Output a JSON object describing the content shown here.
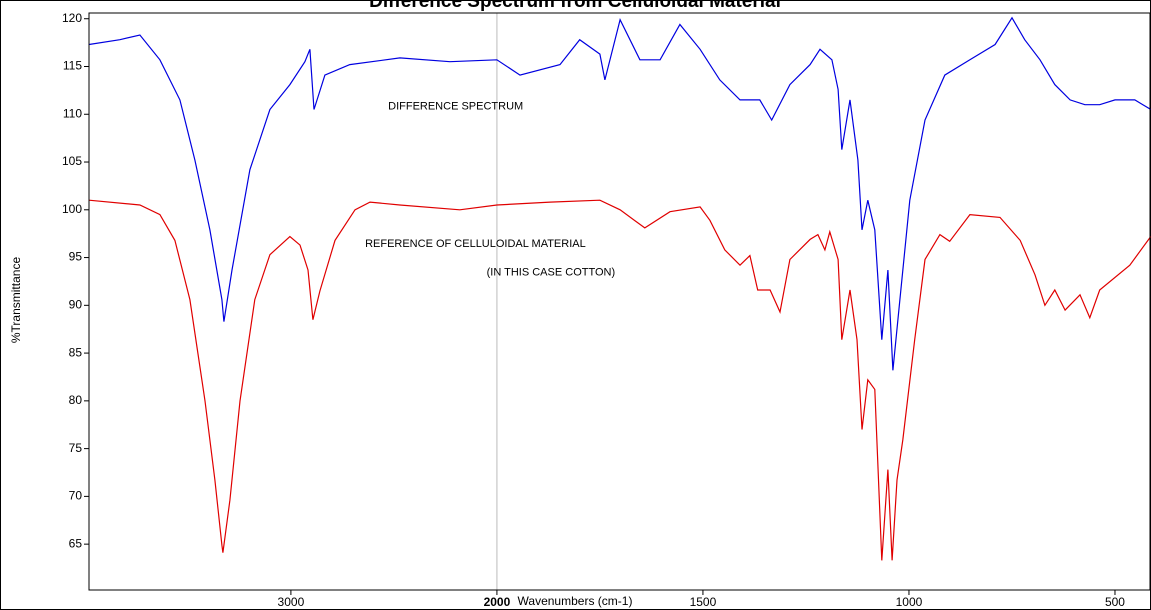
{
  "chart_data": {
    "type": "line",
    "title": "Difference Spectrum from Celluloidal Material",
    "xlabel": "Wavenumbers (cm-1)",
    "ylabel": "%Transmittance",
    "xlim": [
      3980,
      415
    ],
    "x_scale_break": 2000,
    "xticks": [
      3000,
      2000,
      1500,
      1000,
      500
    ],
    "ylim": [
      60.2,
      120.6
    ],
    "yticks": [
      65,
      70,
      75,
      80,
      85,
      90,
      95,
      100,
      105,
      110,
      115,
      120
    ],
    "annotations": [
      {
        "text": "DIFFERENCE SPECTRUM",
        "x": 2528,
        "y": 110.8
      },
      {
        "text": "REFERENCE OF CELLULOIDAL MATERIAL",
        "x": 2640,
        "y": 96.4
      },
      {
        "text": "(IN THIS CASE COTTON)",
        "x": 2050,
        "y": 93.4
      }
    ],
    "series": [
      {
        "name": "DIFFERENCE SPECTRUM",
        "color": "#0000e0",
        "x": [
          3980,
          3830,
          3733,
          3636,
          3539,
          3466,
          3393,
          3335,
          3325,
          3286,
          3199,
          3102,
          3005,
          2932,
          2908,
          2888,
          2835,
          2714,
          2471,
          2228,
          2000,
          1944,
          1847,
          1799,
          1750,
          1738,
          1701,
          1653,
          1604,
          1556,
          1507,
          1459,
          1410,
          1362,
          1333,
          1289,
          1240,
          1216,
          1187,
          1172,
          1163,
          1143,
          1124,
          1114,
          1100,
          1083,
          1066,
          1051,
          1039,
          1022,
          998,
          961,
          913,
          852,
          791,
          750,
          719,
          682,
          646,
          609,
          573,
          537,
          500,
          452,
          413
        ],
        "values": [
          117.3,
          117.8,
          118.3,
          115.7,
          111.5,
          105.2,
          97.9,
          90.6,
          88.3,
          93.7,
          104.2,
          110.5,
          113.1,
          115.5,
          116.8,
          110.5,
          114.1,
          115.2,
          115.9,
          115.5,
          115.7,
          114.1,
          115.2,
          117.8,
          116.3,
          113.6,
          119.9,
          115.7,
          115.7,
          119.4,
          116.8,
          113.6,
          111.5,
          111.5,
          109.4,
          113.1,
          115.2,
          116.8,
          115.7,
          112.6,
          106.3,
          111.5,
          105.2,
          97.9,
          101,
          97.9,
          86.4,
          93.7,
          83.2,
          90.6,
          101,
          109.4,
          114.1,
          115.7,
          117.3,
          120.1,
          117.8,
          115.7,
          113.1,
          111.5,
          111,
          111,
          111.5,
          111.5,
          110.5
        ]
      },
      {
        "name": "REFERENCE OF CELLULOIDAL MATERIAL",
        "color": "#e00000",
        "x": [
          3980,
          3733,
          3636,
          3563,
          3490,
          3417,
          3369,
          3335,
          3330,
          3296,
          3247,
          3175,
          3102,
          3005,
          2956,
          2917,
          2893,
          2859,
          2786,
          2689,
          2616,
          2471,
          2180,
          2000,
          1871,
          1750,
          1701,
          1641,
          1580,
          1507,
          1483,
          1447,
          1410,
          1386,
          1367,
          1337,
          1313,
          1289,
          1240,
          1221,
          1204,
          1192,
          1172,
          1163,
          1143,
          1126,
          1114,
          1100,
          1083,
          1066,
          1051,
          1041,
          1029,
          1015,
          986,
          961,
          925,
          901,
          852,
          779,
          730,
          694,
          670,
          646,
          621,
          585,
          561,
          537,
          464,
          413
        ],
        "values": [
          101,
          100.5,
          99.5,
          96.8,
          90.6,
          80,
          71.7,
          64.9,
          64.1,
          69.6,
          80,
          90.6,
          95.3,
          97.2,
          96.3,
          93.7,
          88.5,
          91.5,
          96.8,
          100,
          100.8,
          100.5,
          100,
          100.5,
          100.8,
          101,
          100,
          98.1,
          99.8,
          100.3,
          98.9,
          95.8,
          94.2,
          95.2,
          91.6,
          91.6,
          89.3,
          94.8,
          96.9,
          97.4,
          95.8,
          97.7,
          94.8,
          86.4,
          91.6,
          86.4,
          77,
          82.2,
          81.2,
          63.3,
          72.8,
          63.3,
          71.7,
          75.9,
          86.4,
          94.8,
          97.4,
          96.7,
          99.5,
          99.2,
          96.8,
          93.2,
          90,
          91.6,
          89.5,
          91.1,
          88.7,
          91.6,
          94.2,
          97.2
        ]
      }
    ]
  }
}
